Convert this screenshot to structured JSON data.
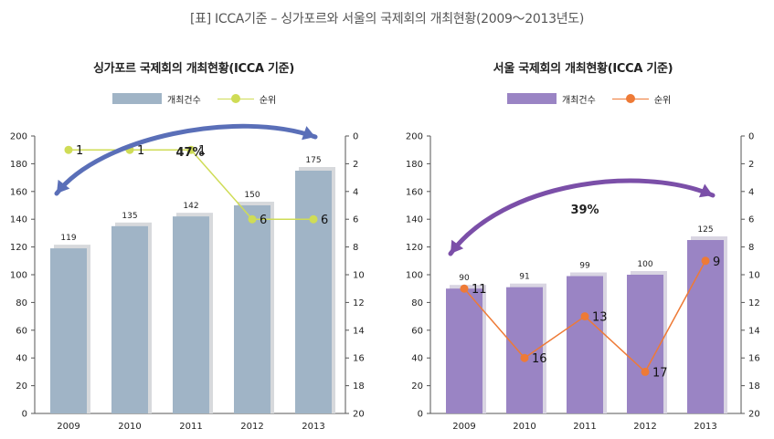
{
  "page_title": "[표] ICCA기준 – 싱가포르와 서울의 국제회의 개최현황(2009～2013년도)",
  "colors": {
    "sg_bar": "#a0b4c6",
    "sg_bar_shadow": "#d7d9dc",
    "sg_line": "#cfdc56",
    "sg_arrow": "#5a6fb8",
    "se_bar": "#9a84c4",
    "se_bar_shadow": "#d9d5e2",
    "se_line": "#ee7a36",
    "se_arrow": "#7b4fa8"
  },
  "chart_data": [
    {
      "type": "bar",
      "title": "싱가포르 국제회의 개최현황(ICCA 기준)",
      "categories": [
        "2009",
        "2010",
        "2011",
        "2012",
        "2013"
      ],
      "series": [
        {
          "name": "개최건수",
          "type": "bar",
          "axis": "left",
          "values": [
            119,
            135,
            142,
            150,
            175
          ]
        },
        {
          "name": "순위",
          "type": "line",
          "axis": "right",
          "values": [
            1,
            1,
            1,
            6,
            6
          ]
        }
      ],
      "bar_labels": [
        "119",
        "135",
        "142",
        "150",
        "175"
      ],
      "rank_labels": [
        "1",
        "1",
        "1",
        "6",
        "6"
      ],
      "ylim": [
        0,
        200
      ],
      "yticks": [
        "0",
        "20",
        "40",
        "60",
        "80",
        "100",
        "120",
        "140",
        "160",
        "180",
        "200"
      ],
      "y2lim": [
        0,
        20
      ],
      "y2ticks": [
        "0",
        "2",
        "4",
        "6",
        "8",
        "10",
        "12",
        "14",
        "16",
        "18",
        "20"
      ],
      "y2_inverted": true,
      "legend_position": "top",
      "annotation": "47%"
    },
    {
      "type": "bar",
      "title": "서울 국제회의 개최현황(ICCA 기준)",
      "categories": [
        "2009",
        "2010",
        "2011",
        "2012",
        "2013"
      ],
      "series": [
        {
          "name": "개최건수",
          "type": "bar",
          "axis": "left",
          "values": [
            90,
            91,
            99,
            100,
            125
          ]
        },
        {
          "name": "순위",
          "type": "line",
          "axis": "right",
          "values": [
            11,
            16,
            13,
            17,
            9
          ]
        }
      ],
      "bar_labels": [
        "90",
        "91",
        "99",
        "100",
        "125"
      ],
      "rank_labels": [
        "11",
        "16",
        "13",
        "17",
        "9"
      ],
      "ylim": [
        0,
        200
      ],
      "yticks": [
        "0",
        "20",
        "40",
        "60",
        "80",
        "100",
        "120",
        "140",
        "160",
        "180",
        "200"
      ],
      "y2lim": [
        0,
        20
      ],
      "y2ticks": [
        "0",
        "2",
        "4",
        "6",
        "8",
        "10",
        "12",
        "14",
        "16",
        "18",
        "20"
      ],
      "y2_inverted": true,
      "legend_position": "top",
      "annotation": "39%"
    }
  ]
}
